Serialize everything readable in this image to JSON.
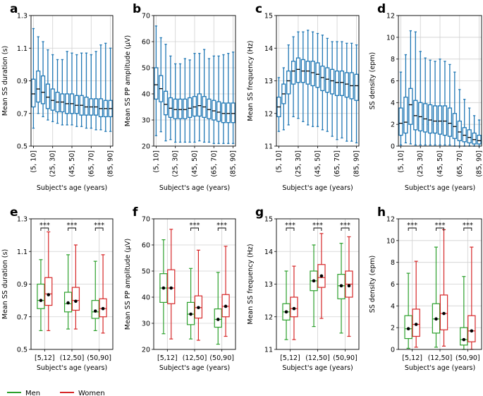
{
  "colors": {
    "blue": "#1f77b4",
    "men": "#2ca02c",
    "women": "#d62728",
    "grid": "#d0d0d0",
    "median_black": "#000000"
  },
  "legend": {
    "men_label": "Men",
    "women_label": "Women"
  },
  "chart_data": [
    {
      "panel": "a",
      "type": "box",
      "ylabel": "Mean SS duration (s)",
      "xlabel": "Subject's age (years)",
      "ylim": [
        0.5,
        1.3
      ],
      "yticks": [
        "0.5",
        "0.7",
        "0.9",
        "1.1",
        "1.3"
      ],
      "ytick_values": [
        0.5,
        0.7,
        0.9,
        1.1,
        1.3
      ],
      "xtick_labels": [
        "(5, 10]",
        "(25, 30]",
        "(45, 50]",
        "(65, 70]",
        "(85, 90]"
      ],
      "xtick_positions": [
        0,
        4,
        8,
        12,
        16
      ],
      "x_range": [
        -0.5,
        16.5
      ],
      "boxes": {
        "med": [
          0.82,
          0.85,
          0.83,
          0.8,
          0.78,
          0.77,
          0.77,
          0.76,
          0.76,
          0.75,
          0.75,
          0.74,
          0.74,
          0.74,
          0.73,
          0.73,
          0.73
        ],
        "q1": [
          0.74,
          0.77,
          0.76,
          0.73,
          0.72,
          0.71,
          0.71,
          0.7,
          0.7,
          0.7,
          0.69,
          0.69,
          0.69,
          0.69,
          0.68,
          0.68,
          0.68
        ],
        "q3": [
          0.91,
          0.96,
          0.93,
          0.88,
          0.85,
          0.83,
          0.82,
          0.82,
          0.82,
          0.81,
          0.81,
          0.8,
          0.79,
          0.79,
          0.79,
          0.78,
          0.78
        ],
        "wlo": [
          0.61,
          0.7,
          0.68,
          0.66,
          0.65,
          0.64,
          0.63,
          0.63,
          0.63,
          0.62,
          0.62,
          0.61,
          0.61,
          0.6,
          0.6,
          0.59,
          0.59
        ],
        "whi": [
          1.22,
          1.17,
          1.14,
          1.09,
          1.06,
          1.03,
          1.03,
          1.08,
          1.07,
          1.06,
          1.07,
          1.07,
          1.06,
          1.08,
          1.12,
          1.13,
          1.1
        ]
      }
    },
    {
      "panel": "b",
      "type": "box",
      "ylabel": "Mean SS PP amplitude (μV)",
      "xlabel": "Subject's age (years)",
      "ylim": [
        20,
        70
      ],
      "yticks": [
        "20",
        "30",
        "40",
        "50",
        "60",
        "70"
      ],
      "ytick_values": [
        20,
        30,
        40,
        50,
        60,
        70
      ],
      "xtick_labels": [
        "(5, 10]",
        "(25, 30]",
        "(45, 50]",
        "(65, 70]",
        "(85, 90]"
      ],
      "xtick_positions": [
        0,
        4,
        8,
        12,
        16
      ],
      "x_range": [
        -0.5,
        16.5
      ],
      "boxes": {
        "med": [
          43.5,
          42.0,
          36.0,
          34.5,
          34.0,
          34.0,
          34.0,
          34.5,
          35.0,
          35.5,
          35.0,
          34.0,
          33.5,
          33.0,
          32.5,
          32.5,
          32.5
        ],
        "q1": [
          38.0,
          37.0,
          32.0,
          31.0,
          30.5,
          30.5,
          30.5,
          31.0,
          31.5,
          31.5,
          31.0,
          30.5,
          30.0,
          29.5,
          29.0,
          29.0,
          29.0
        ],
        "q3": [
          50.0,
          47.0,
          41.0,
          38.5,
          38.0,
          38.0,
          38.0,
          38.5,
          39.0,
          40.0,
          39.0,
          38.0,
          37.5,
          37.0,
          36.5,
          36.5,
          36.5
        ],
        "wlo": [
          24.0,
          25.5,
          22.0,
          22.5,
          21.5,
          21.5,
          21.5,
          21.5,
          21.5,
          22.0,
          21.5,
          21.5,
          21.0,
          21.0,
          21.0,
          21.0,
          21.0
        ],
        "whi": [
          66.0,
          61.5,
          59.0,
          54.5,
          51.5,
          51.5,
          53.5,
          53.0,
          55.5,
          55.5,
          57.0,
          53.5,
          54.5,
          54.5,
          55.0,
          55.5,
          56.0
        ]
      }
    },
    {
      "panel": "c",
      "type": "box",
      "ylabel": "Mean SS frequency (Hz)",
      "xlabel": "Subject's age (years)",
      "ylim": [
        11,
        15
      ],
      "yticks": [
        "11",
        "12",
        "13",
        "14",
        "15"
      ],
      "ytick_values": [
        11,
        12,
        13,
        14,
        15
      ],
      "xtick_labels": [
        "(5, 10]",
        "(25, 30]",
        "(45, 50]",
        "(65, 70]",
        "(85, 90]"
      ],
      "xtick_positions": [
        0,
        4,
        8,
        12,
        16
      ],
      "x_range": [
        -0.5,
        16.5
      ],
      "boxes": {
        "med": [
          12.2,
          12.6,
          13.0,
          13.3,
          13.35,
          13.3,
          13.3,
          13.25,
          13.2,
          13.1,
          13.05,
          13.0,
          12.95,
          12.95,
          12.9,
          12.85,
          12.85
        ],
        "q1": [
          11.9,
          12.3,
          12.6,
          12.9,
          12.95,
          12.95,
          12.9,
          12.85,
          12.8,
          12.7,
          12.65,
          12.6,
          12.55,
          12.55,
          12.5,
          12.45,
          12.4
        ],
        "q3": [
          12.5,
          12.9,
          13.3,
          13.6,
          13.7,
          13.65,
          13.6,
          13.6,
          13.55,
          13.45,
          13.4,
          13.35,
          13.3,
          13.3,
          13.25,
          13.25,
          13.2
        ],
        "wlo": [
          11.45,
          11.5,
          11.65,
          11.9,
          11.85,
          11.75,
          11.65,
          11.6,
          11.6,
          11.5,
          11.45,
          11.3,
          11.2,
          11.25,
          11.15,
          11.15,
          11.1
        ],
        "whi": [
          13.1,
          13.4,
          14.1,
          14.35,
          14.5,
          14.5,
          14.55,
          14.5,
          14.45,
          14.4,
          14.3,
          14.2,
          14.2,
          14.2,
          14.15,
          14.15,
          14.1
        ]
      }
    },
    {
      "panel": "d",
      "type": "box",
      "ylabel": "SS density (epm)",
      "xlabel": "Subject's age (years)",
      "ylim": [
        0,
        12
      ],
      "yticks": [
        "0",
        "2",
        "4",
        "6",
        "8",
        "10",
        "12"
      ],
      "ytick_values": [
        0,
        2,
        4,
        6,
        8,
        10,
        12
      ],
      "xtick_labels": [
        "(5, 10]",
        "(25, 30]",
        "(45, 50]",
        "(65, 70]",
        "(85, 90]"
      ],
      "xtick_positions": [
        0,
        4,
        8,
        12,
        16
      ],
      "x_range": [
        -0.5,
        16.5
      ],
      "boxes": {
        "med": [
          2.1,
          2.2,
          3.8,
          2.8,
          2.7,
          2.5,
          2.4,
          2.3,
          2.3,
          2.3,
          2.1,
          1.8,
          1.3,
          1.0,
          0.8,
          0.6,
          0.5
        ],
        "q1": [
          1.0,
          1.2,
          2.0,
          1.5,
          1.4,
          1.3,
          1.2,
          1.2,
          1.1,
          1.0,
          0.9,
          0.7,
          0.5,
          0.4,
          0.3,
          0.2,
          0.2
        ],
        "q3": [
          3.5,
          4.5,
          5.3,
          4.2,
          4.0,
          3.9,
          3.8,
          3.7,
          3.7,
          3.7,
          3.5,
          3.0,
          2.3,
          1.7,
          1.5,
          1.2,
          1.0
        ],
        "wlo": [
          0.1,
          0.3,
          0.2,
          0.1,
          0.1,
          0.1,
          0.1,
          0.1,
          0.1,
          0.1,
          0.1,
          0.0,
          0.0,
          0.0,
          0.0,
          0.0,
          0.0
        ],
        "whi": [
          6.8,
          8.4,
          10.6,
          10.5,
          8.7,
          8.1,
          7.9,
          7.8,
          8.0,
          7.8,
          7.5,
          6.8,
          5.2,
          4.3,
          3.5,
          2.8,
          2.4
        ]
      }
    },
    {
      "panel": "e",
      "type": "box-grouped",
      "ylabel": "Mean SS duration (s)",
      "xlabel": "Subject's age (years)",
      "ylim": [
        0.5,
        1.3
      ],
      "yticks": [
        "0.5",
        "0.7",
        "0.9",
        "1.1",
        "1.3"
      ],
      "ytick_values": [
        0.5,
        0.7,
        0.9,
        1.1,
        1.3
      ],
      "categories": [
        "[5,12]",
        "(12,50]",
        "(50,90]"
      ],
      "significance": [
        "***",
        "***",
        "***"
      ],
      "series": [
        {
          "name": "Men",
          "med": [
            0.8,
            0.78,
            0.73
          ],
          "mean": [
            0.8,
            0.785,
            0.735
          ],
          "q1": [
            0.75,
            0.73,
            0.69
          ],
          "q3": [
            0.9,
            0.85,
            0.8
          ],
          "wlo": [
            0.615,
            0.625,
            0.615
          ],
          "whi": [
            1.05,
            1.08,
            1.04
          ]
        },
        {
          "name": "Women",
          "med": [
            0.84,
            0.8,
            0.75
          ],
          "mean": [
            0.835,
            0.795,
            0.75
          ],
          "q1": [
            0.77,
            0.74,
            0.7
          ],
          "q3": [
            0.94,
            0.88,
            0.81
          ],
          "wlo": [
            0.615,
            0.625,
            0.6
          ],
          "whi": [
            1.22,
            1.14,
            1.08
          ]
        }
      ]
    },
    {
      "panel": "f",
      "type": "box-grouped",
      "ylabel": "Mean SS PP amplitude (μV)",
      "xlabel": "Subject's age (years)",
      "ylim": [
        20,
        70
      ],
      "yticks": [
        "20",
        "30",
        "40",
        "50",
        "60",
        "70"
      ],
      "ytick_values": [
        20,
        30,
        40,
        50,
        60,
        70
      ],
      "categories": [
        "[5,12]",
        "(12,50]",
        "(50,90]"
      ],
      "significance": [
        "",
        "***",
        "***"
      ],
      "series": [
        {
          "name": "Men",
          "med": [
            43.5,
            33.5,
            31.5
          ],
          "mean": [
            43.5,
            33.5,
            31.5
          ],
          "q1": [
            38.0,
            29.5,
            28.5
          ],
          "q3": [
            49.0,
            38.0,
            35.5
          ],
          "wlo": [
            26.0,
            24.0,
            22.0
          ],
          "whi": [
            62.0,
            51.0,
            49.5
          ]
        },
        {
          "name": "Women",
          "med": [
            43.5,
            36.0,
            36.5
          ],
          "mean": [
            43.5,
            36.0,
            36.5
          ],
          "q1": [
            37.5,
            32.0,
            32.5
          ],
          "q3": [
            50.5,
            40.5,
            41.0
          ],
          "wlo": [
            24.0,
            23.5,
            25.0
          ],
          "whi": [
            66.0,
            58.0,
            59.5
          ]
        }
      ]
    },
    {
      "panel": "g",
      "type": "box-grouped",
      "ylabel": "Mean SS frequency (Hz)",
      "xlabel": "Subject's age (years)",
      "ylim": [
        11,
        15
      ],
      "yticks": [
        "11",
        "12",
        "13",
        "14",
        "15"
      ],
      "ytick_values": [
        11,
        12,
        13,
        14,
        15
      ],
      "categories": [
        "[5,12]",
        "(12,50]",
        "(50,90]"
      ],
      "significance": [
        "***",
        "***",
        "***"
      ],
      "series": [
        {
          "name": "Men",
          "med": [
            12.15,
            13.1,
            12.95
          ],
          "mean": [
            12.15,
            13.1,
            12.95
          ],
          "q1": [
            11.9,
            12.8,
            12.55
          ],
          "q3": [
            12.4,
            13.4,
            13.3
          ],
          "wlo": [
            11.3,
            11.7,
            11.5
          ],
          "whi": [
            13.4,
            14.2,
            14.25
          ]
        },
        {
          "name": "Women",
          "med": [
            12.25,
            13.2,
            13.0
          ],
          "mean": [
            12.25,
            13.25,
            12.95
          ],
          "q1": [
            12.0,
            12.9,
            12.6
          ],
          "q3": [
            12.6,
            13.6,
            13.4
          ],
          "wlo": [
            11.3,
            11.95,
            11.4
          ],
          "whi": [
            13.55,
            14.55,
            14.45
          ]
        }
      ]
    },
    {
      "panel": "h",
      "type": "box-grouped",
      "ylabel": "SS density (epm)",
      "xlabel": "Subject's age (years)",
      "ylim": [
        0,
        12
      ],
      "yticks": [
        "0",
        "2",
        "4",
        "6",
        "8",
        "10",
        "12"
      ],
      "ytick_values": [
        0,
        2,
        4,
        6,
        8,
        10,
        12
      ],
      "categories": [
        "[5,12]",
        "(12,50]",
        "(50,90]"
      ],
      "significance": [
        "***",
        "***",
        "***"
      ],
      "series": [
        {
          "name": "Men",
          "med": [
            1.9,
            2.8,
            0.9
          ],
          "mean": [
            1.9,
            2.8,
            0.9
          ],
          "q1": [
            1.0,
            1.5,
            0.4
          ],
          "q3": [
            3.1,
            4.2,
            2.0
          ],
          "wlo": [
            0.1,
            0.2,
            0.0
          ],
          "whi": [
            7.0,
            9.4,
            6.7
          ]
        },
        {
          "name": "Women",
          "med": [
            2.3,
            3.3,
            1.7
          ],
          "mean": [
            2.3,
            3.3,
            1.7
          ],
          "q1": [
            1.2,
            1.8,
            0.7
          ],
          "q3": [
            3.7,
            5.0,
            3.1
          ],
          "wlo": [
            0.2,
            0.3,
            0.0
          ],
          "whi": [
            8.1,
            11.0,
            9.4
          ]
        }
      ]
    }
  ]
}
